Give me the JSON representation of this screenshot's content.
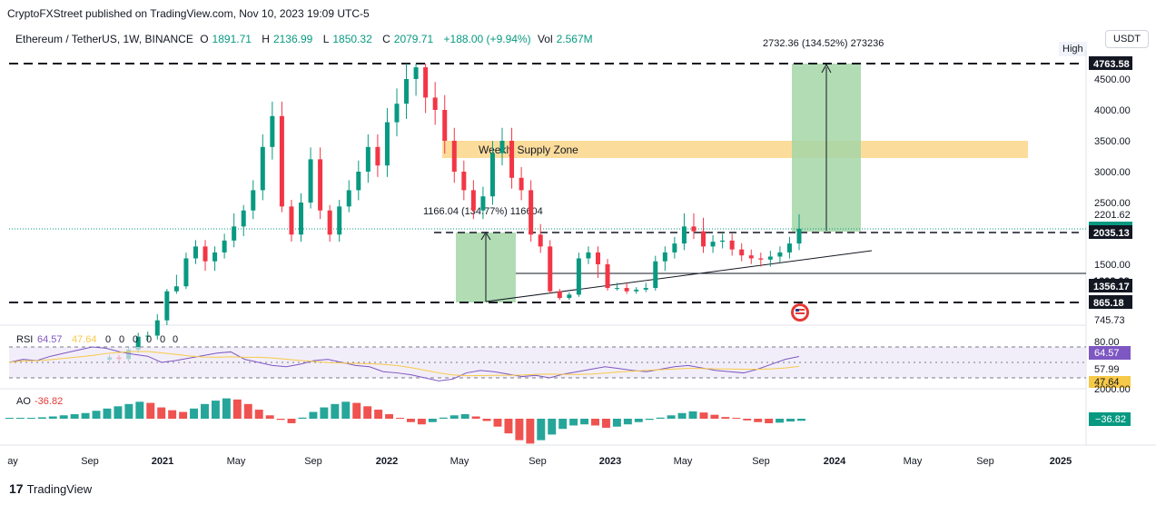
{
  "header": {
    "publisher_line": "CryptoFXStreet published on TradingView.com, Nov 10, 2023 19:09 UTC-5",
    "symbol": "Ethereum / TetherUS, 1W, BINANCE",
    "o_label": "O",
    "o_value": "1891.71",
    "h_label": "H",
    "h_value": "2136.99",
    "l_label": "L",
    "l_value": "1850.32",
    "c_label": "C",
    "c_value": "2079.71",
    "change": "+188.00 (+9.94%)",
    "vol_label": "Vol",
    "vol_value": "2.567M",
    "currency": "USDT",
    "high_tag": "High"
  },
  "chart_data": [
    {
      "type": "candlestick",
      "title": "Ethereum / TetherUS, 1W, BINANCE",
      "x_labels": [
        "ay",
        "Sep",
        "2021",
        "May",
        "Sep",
        "2022",
        "May",
        "Sep",
        "2023",
        "May",
        "Sep",
        "2024",
        "May",
        "Sep",
        "2025"
      ],
      "y_axis": [
        {
          "value": 4500,
          "label": "4500.00"
        },
        {
          "value": 4000,
          "label": "4000.00"
        },
        {
          "value": 3500,
          "label": "3500.00"
        },
        {
          "value": 3000,
          "label": "3000.00"
        },
        {
          "value": 2500,
          "label": "2500.00"
        },
        {
          "value": 2201.62,
          "label": "2201.62"
        },
        {
          "value": 1500,
          "label": "1500.00"
        },
        {
          "value": 745.73,
          "label": "745.73"
        }
      ],
      "price_tags": [
        {
          "value": 4763.58,
          "label": "4763.58",
          "style": "dark"
        },
        {
          "value": 2079.71,
          "label": "2079.71",
          "style": "green"
        },
        {
          "value": 2035.13,
          "label": "2035.13",
          "style": "dark"
        },
        {
          "value": 1392.08,
          "label": "1392.08",
          "style": "plain"
        },
        {
          "value": 1356.17,
          "label": "1356.17",
          "style": "dark"
        },
        {
          "value": 865.18,
          "label": "865.18",
          "style": "dark"
        }
      ],
      "horizontal_levels": [
        4763.58,
        2035.13,
        865.18,
        1392.08
      ],
      "annotations": [
        {
          "text": "Weekly Supply Zone",
          "low": 3250,
          "high": 3500,
          "color": "#fbd68a"
        },
        {
          "text": "2732.36 (134.52%) 273236",
          "from": 2035.13,
          "to": 4763.58
        },
        {
          "text": "1166.04 (134.77%) 116604",
          "from": 865.18,
          "to": 2035.13
        }
      ],
      "weekly_close": [
        380,
        400,
        385,
        470,
        590,
        600,
        740,
        1200,
        1350,
        1600,
        1800,
        1550,
        1700,
        1900,
        2100,
        2300,
        2700,
        3400,
        3900,
        2400,
        2000,
        2500,
        3200,
        2300,
        2000,
        2400,
        2700,
        3000,
        3400,
        3100,
        3800,
        4100,
        4500,
        4700,
        4200,
        4000,
        3500,
        3000,
        2700,
        2300,
        2600,
        3300,
        3500,
        2900,
        2700,
        2000,
        1800,
        1200,
        1000,
        1100,
        1600,
        1700,
        1500,
        1300,
        1300,
        1200,
        1250,
        1300,
        1550,
        1700,
        1850,
        2100,
        2050,
        1800,
        1880,
        1900,
        1750,
        1650,
        1600,
        1580,
        1630,
        1700,
        1850,
        2080
      ]
    },
    {
      "type": "line",
      "title": "RSI",
      "label": "RSI",
      "series": [
        {
          "name": "RSI",
          "value_label": "64.57",
          "color": "#7e57c2"
        },
        {
          "name": "RSI-based MA",
          "value_label": "47.64",
          "color": "#f7c948"
        }
      ],
      "extra_labels": [
        "0",
        "0",
        "0",
        "0",
        "0",
        "0"
      ],
      "levels": [
        {
          "value": 80,
          "label": "80.00"
        },
        {
          "value": 57.99,
          "label": "57.99"
        }
      ],
      "tags": [
        {
          "value": 64.57,
          "label": "64.57"
        },
        {
          "value": 47.64,
          "label": "47.64"
        }
      ],
      "rsi_values": [
        55,
        60,
        58,
        65,
        70,
        75,
        80,
        78,
        72,
        68,
        65,
        55,
        58,
        62,
        66,
        70,
        72,
        60,
        55,
        50,
        48,
        52,
        58,
        60,
        55,
        50,
        48,
        40,
        38,
        35,
        30,
        25,
        28,
        38,
        42,
        40,
        36,
        32,
        34,
        30,
        36,
        40,
        44,
        48,
        45,
        42,
        40,
        44,
        48,
        50,
        46,
        42,
        40,
        38,
        44,
        52,
        60,
        64.57
      ]
    },
    {
      "type": "bar",
      "title": "AO",
      "label": "AO",
      "value_label": "-36.82",
      "axis_label": "2000.00",
      "tag": "−36.82",
      "ao_values": [
        5,
        10,
        15,
        25,
        40,
        60,
        80,
        100,
        140,
        180,
        220,
        260,
        300,
        280,
        200,
        150,
        120,
        180,
        260,
        320,
        360,
        340,
        260,
        160,
        60,
        -20,
        -80,
        20,
        120,
        200,
        260,
        300,
        280,
        220,
        160,
        80,
        0,
        -60,
        -100,
        -60,
        20,
        60,
        80,
        40,
        -40,
        -140,
        -260,
        -380,
        -440,
        -380,
        -280,
        -180,
        -120,
        -100,
        -120,
        -160,
        -140,
        -100,
        -60,
        -20,
        20,
        60,
        100,
        130,
        110,
        70,
        30,
        0,
        -30,
        -60,
        -80,
        -70,
        -50,
        -36.82
      ]
    }
  ],
  "footer": {
    "logo_mark": "17",
    "brand": "TradingView"
  }
}
